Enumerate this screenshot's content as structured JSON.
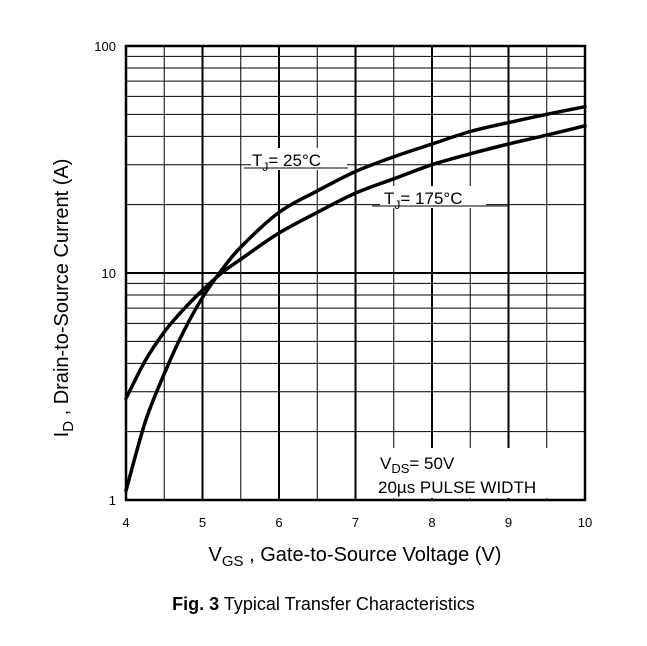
{
  "caption": {
    "fig_label": "Fig. 3",
    "text": "Typical Transfer Characteristics"
  },
  "chart_data": {
    "type": "line",
    "title": "",
    "x_axis": {
      "label_main": "V",
      "label_sub": "GS",
      "label_rest": " , Gate-to-Source Voltage (V)",
      "range": [
        4,
        10
      ],
      "ticks": [
        4,
        5,
        6,
        7,
        8,
        9,
        10
      ],
      "tick_labels": [
        "4",
        "5",
        "6",
        "7",
        "8",
        "9",
        "10"
      ],
      "scale": "linear"
    },
    "y_axis": {
      "label_main": "I",
      "label_sub": "D",
      "label_rest": " , Drain-to-Source Current (A)",
      "range": [
        1,
        100
      ],
      "ticks": [
        1,
        10,
        100
      ],
      "tick_labels": [
        "1",
        "10",
        "100"
      ],
      "scale": "log"
    },
    "grid": true,
    "series": [
      {
        "name": "TJ = 25°C",
        "label_main": "T",
        "label_sub": "J",
        "label_rest": "= 25°C",
        "x": [
          4.0,
          4.25,
          4.5,
          4.75,
          5.0,
          5.25,
          5.5,
          6.0,
          6.5,
          7.0,
          7.5,
          8.0,
          8.5,
          9.0,
          9.5,
          10.0
        ],
        "y": [
          1.1,
          2.2,
          3.6,
          5.5,
          7.8,
          10.3,
          13.0,
          18.5,
          23.0,
          28.0,
          32.5,
          37.0,
          42.0,
          46.0,
          50.0,
          54.0
        ]
      },
      {
        "name": "TJ = 175°C",
        "label_main": "T",
        "label_sub": "J",
        "label_rest": "= 175°C",
        "x": [
          4.0,
          4.25,
          4.5,
          4.75,
          5.0,
          5.25,
          5.5,
          6.0,
          6.5,
          7.0,
          7.5,
          8.0,
          8.5,
          9.0,
          9.5,
          10.0
        ],
        "y": [
          2.8,
          4.1,
          5.5,
          6.9,
          8.4,
          10.0,
          11.5,
          15.0,
          18.5,
          22.5,
          26.0,
          30.0,
          33.5,
          37.0,
          40.5,
          44.5
        ]
      }
    ],
    "annotations": [
      {
        "main": "V",
        "sub": "DS",
        "rest": "= 50V"
      },
      {
        "text": "20µs PULSE WIDTH"
      }
    ]
  }
}
